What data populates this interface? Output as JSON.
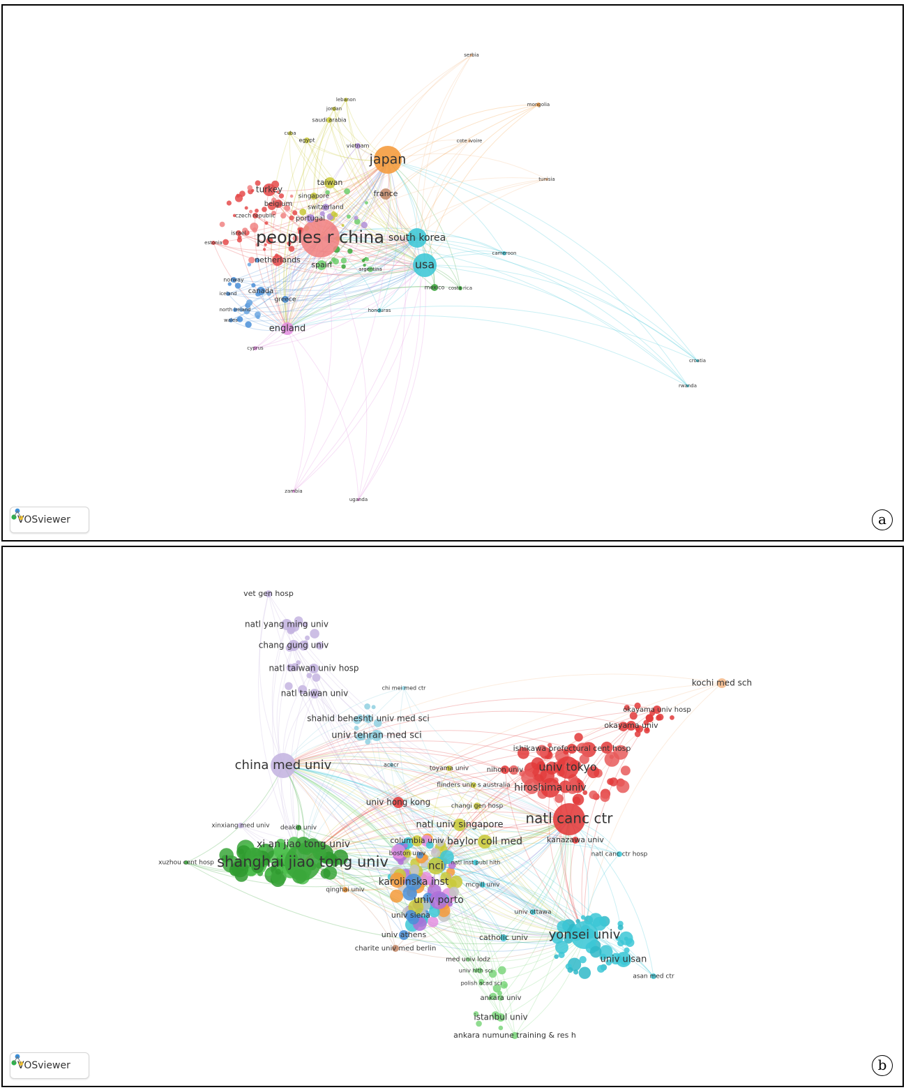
{
  "panels": [
    {
      "id": "a",
      "letter": "a",
      "badge": "VOSviewer",
      "nodes": [
        {
          "label": "japan",
          "color": "#f59a3a"
        },
        {
          "label": "peoples r china",
          "color": "#f08282"
        },
        {
          "label": "usa",
          "color": "#3cc7d6"
        },
        {
          "label": "south korea",
          "color": "#3cc7d6"
        },
        {
          "label": "england",
          "color": "#e48fe0"
        },
        {
          "label": "turkey",
          "color": "#e54b4b"
        },
        {
          "label": "taiwan",
          "color": "#c9c93a"
        },
        {
          "label": "france",
          "color": "#c48a6a"
        },
        {
          "label": "netherlands",
          "color": "#e54b4b"
        },
        {
          "label": "spain",
          "color": "#6dce6d"
        },
        {
          "label": "canada",
          "color": "#4a8fd8"
        },
        {
          "label": "greece",
          "color": "#4a8fd8"
        },
        {
          "label": "belgium",
          "color": "#e54b4b"
        },
        {
          "label": "singapore",
          "color": "#c9c93a"
        },
        {
          "label": "switzerland",
          "color": "#b08fd8"
        },
        {
          "label": "portugal",
          "color": "#b08fd8"
        },
        {
          "label": "czech republic",
          "color": "#e54b4b"
        },
        {
          "label": "israel",
          "color": "#e54b4b"
        },
        {
          "label": "estonia",
          "color": "#e54b4b"
        },
        {
          "label": "norway",
          "color": "#4a8fd8"
        },
        {
          "label": "iceland",
          "color": "#4a8fd8"
        },
        {
          "label": "north ireland",
          "color": "#4a8fd8"
        },
        {
          "label": "wales",
          "color": "#4a8fd8"
        },
        {
          "label": "cyprus",
          "color": "#e48fe0"
        },
        {
          "label": "argentina",
          "color": "#6dce6d"
        },
        {
          "label": "mexico",
          "color": "#3aa63a"
        },
        {
          "label": "costa rica",
          "color": "#3aa63a"
        },
        {
          "label": "honduras",
          "color": "#3cc7d6"
        },
        {
          "label": "cameroon",
          "color": "#3cc7d6"
        },
        {
          "label": "croatia",
          "color": "#3cc7d6"
        },
        {
          "label": "rwanda",
          "color": "#3cc7d6"
        },
        {
          "label": "tunisia",
          "color": "#f5b98a"
        },
        {
          "label": "cote ivoire",
          "color": "#f5b98a"
        },
        {
          "label": "mongolia",
          "color": "#f59a3a"
        },
        {
          "label": "serbia",
          "color": "#f5b98a"
        },
        {
          "label": "vietnam",
          "color": "#b08fd8"
        },
        {
          "label": "egypt",
          "color": "#c9c93a"
        },
        {
          "label": "cuba",
          "color": "#c9c93a"
        },
        {
          "label": "saudi arabia",
          "color": "#c9c93a"
        },
        {
          "label": "jordan",
          "color": "#c9c93a"
        },
        {
          "label": "lebanon",
          "color": "#c9c93a"
        },
        {
          "label": "zambia",
          "color": "#e48fe0"
        },
        {
          "label": "uganda",
          "color": "#e48fe0"
        }
      ]
    },
    {
      "id": "b",
      "letter": "b",
      "badge": "VOSviewer",
      "nodes": [
        {
          "label": "shanghai jiao tong univ",
          "color": "#3aa63a"
        },
        {
          "label": "natl canc ctr",
          "color": "#e23a3a"
        },
        {
          "label": "yonsei univ",
          "color": "#3cc7d6"
        },
        {
          "label": "china med univ",
          "color": "#c4b4e0"
        },
        {
          "label": "univ tokyo",
          "color": "#e23a3a"
        },
        {
          "label": "hiroshima univ",
          "color": "#e23a3a"
        },
        {
          "label": "nci",
          "color": "#c9c93a"
        },
        {
          "label": "karolinska inst",
          "color": "#4a8fd8"
        },
        {
          "label": "univ porto",
          "color": "#b070d8"
        },
        {
          "label": "xi an jiao tong univ",
          "color": "#3aa63a"
        },
        {
          "label": "baylor coll med",
          "color": "#c9c93a"
        },
        {
          "label": "natl univ singapore",
          "color": "#c9c93a"
        },
        {
          "label": "univ ulsan",
          "color": "#3cc7d6"
        },
        {
          "label": "univ tehran med sci",
          "color": "#8fd0e0"
        },
        {
          "label": "shahid beheshti univ med sci",
          "color": "#8fd0e0"
        },
        {
          "label": "natl taiwan univ",
          "color": "#c4b4e0"
        },
        {
          "label": "natl taiwan univ hosp",
          "color": "#c4b4e0"
        },
        {
          "label": "chang gung univ",
          "color": "#c4b4e0"
        },
        {
          "label": "natl yang ming univ",
          "color": "#c4b4e0"
        },
        {
          "label": "vet gen hosp",
          "color": "#c4b4e0"
        },
        {
          "label": "kochi med sch",
          "color": "#f5b98a"
        },
        {
          "label": "okayama univ hosp",
          "color": "#e23a3a"
        },
        {
          "label": "okayama univ",
          "color": "#e23a3a"
        },
        {
          "label": "ishikawa prefectural cent hosp",
          "color": "#e23a3a"
        },
        {
          "label": "nihon univ",
          "color": "#e23a3a"
        },
        {
          "label": "kanazawa univ",
          "color": "#e23a3a"
        },
        {
          "label": "natl canc ctr hosp",
          "color": "#3cc7d6"
        },
        {
          "label": "univ hong kong",
          "color": "#e23a3a"
        },
        {
          "label": "changi gen hosp",
          "color": "#c9c93a"
        },
        {
          "label": "flinders univ s australia",
          "color": "#c9c93a"
        },
        {
          "label": "toyama univ",
          "color": "#c9c93a"
        },
        {
          "label": "acecr",
          "color": "#8fd0e0"
        },
        {
          "label": "chi mei med ctr",
          "color": "#8fd0e0"
        },
        {
          "label": "columbia univ",
          "color": "#c9c93a"
        },
        {
          "label": "boston univ",
          "color": "#c9c93a"
        },
        {
          "label": "natl inst publ hlth",
          "color": "#3cc7d6"
        },
        {
          "label": "mcgill univ",
          "color": "#3cc7d6"
        },
        {
          "label": "univ siena",
          "color": "#4a8fd8"
        },
        {
          "label": "univ athens",
          "color": "#4a8fd8"
        },
        {
          "label": "charite univ med berlin",
          "color": "#c48a6a"
        },
        {
          "label": "catholic univ",
          "color": "#3cc7d6"
        },
        {
          "label": "univ ottawa",
          "color": "#3cc7d6"
        },
        {
          "label": "asan med ctr",
          "color": "#3cc7d6"
        },
        {
          "label": "med univ lodz",
          "color": "#7dd67d"
        },
        {
          "label": "univ hlth sci",
          "color": "#7dd67d"
        },
        {
          "label": "polish acad sci",
          "color": "#7dd67d"
        },
        {
          "label": "ankara univ",
          "color": "#7dd67d"
        },
        {
          "label": "istanbul univ",
          "color": "#7dd67d"
        },
        {
          "label": "ankara numune training & res h",
          "color": "#7dd67d"
        },
        {
          "label": "xinxiang med univ",
          "color": "#c4b4e0"
        },
        {
          "label": "deakin univ",
          "color": "#3aa63a"
        },
        {
          "label": "xuzhou cent hosp",
          "color": "#3aa63a"
        },
        {
          "label": "qinghai univ",
          "color": "#f59a3a"
        }
      ]
    }
  ]
}
